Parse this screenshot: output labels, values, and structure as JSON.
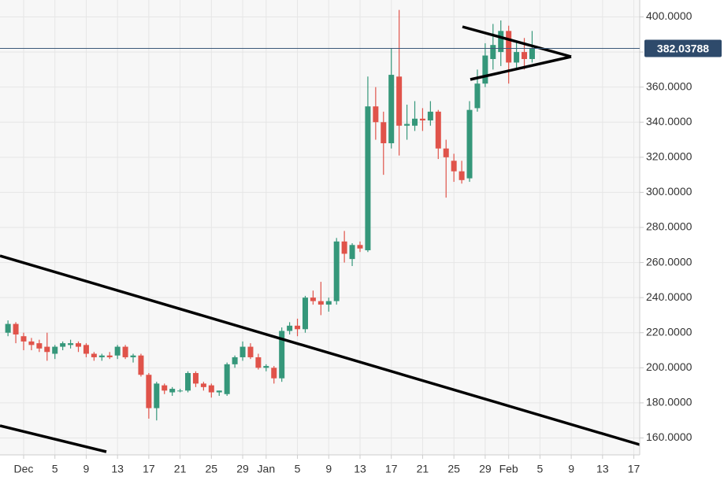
{
  "chart_data": {
    "type": "candlestick",
    "x": [
      -2,
      -1,
      0,
      1,
      2,
      3,
      4,
      5,
      6,
      7,
      8,
      9,
      10,
      11,
      12,
      13,
      14,
      15,
      16,
      17,
      18,
      19,
      20,
      21,
      22,
      23,
      24,
      25,
      26,
      27,
      28,
      29,
      30,
      31,
      32,
      33,
      34,
      35,
      36,
      37,
      38,
      39,
      40,
      41,
      42,
      43,
      44,
      45,
      46,
      47,
      48,
      49,
      50,
      51,
      52,
      53,
      54,
      55,
      56,
      57,
      58,
      59,
      60,
      61,
      62,
      63,
      64,
      65
    ],
    "open": [
      220,
      225,
      218,
      215,
      214,
      212,
      208,
      212,
      213,
      214,
      213,
      208,
      206,
      207,
      207,
      212,
      206,
      207,
      196,
      177,
      190,
      186,
      187,
      187,
      197,
      191,
      190,
      186,
      185,
      202,
      206,
      212,
      206,
      200,
      200,
      194,
      221,
      224,
      222,
      240,
      238,
      236,
      238,
      272,
      262,
      270,
      267,
      349,
      340,
      328,
      366,
      338,
      338,
      342,
      341,
      346,
      325,
      318,
      312,
      308,
      348,
      362,
      376,
      380,
      392,
      374,
      380,
      376
    ],
    "high": [
      227,
      226,
      220,
      217,
      216,
      220,
      213,
      215,
      216,
      215,
      214,
      209,
      208,
      209,
      213,
      213,
      208,
      208,
      197,
      192,
      191,
      189,
      188,
      198,
      198,
      192,
      191,
      187,
      203,
      207,
      215,
      214,
      208,
      202,
      201,
      223,
      226,
      228,
      241,
      244,
      249,
      240,
      274,
      278,
      271,
      272,
      366,
      360,
      346,
      382,
      404,
      350,
      352,
      348,
      352,
      347,
      330,
      322,
      318,
      352,
      370,
      385,
      396,
      398,
      395,
      386,
      388,
      392
    ],
    "low": [
      218,
      214,
      210,
      210,
      209,
      204,
      205,
      210,
      211,
      209,
      206,
      204,
      204,
      205,
      205,
      205,
      203,
      195,
      171,
      170,
      185,
      184,
      186,
      186,
      189,
      187,
      183,
      184,
      184,
      200,
      204,
      205,
      199,
      198,
      191,
      192,
      219,
      218,
      220,
      236,
      230,
      232,
      236,
      260,
      258,
      266,
      266,
      330,
      310,
      325,
      321,
      330,
      335,
      335,
      338,
      319,
      297,
      306,
      305,
      306,
      346,
      360,
      370,
      372,
      362,
      370,
      370,
      374
    ],
    "close": [
      225,
      219,
      215,
      213,
      211,
      209,
      212,
      214,
      214,
      212,
      208,
      206,
      207,
      206,
      212,
      206,
      207,
      196,
      177,
      191,
      187,
      188,
      187,
      197,
      191,
      189,
      186,
      187,
      202,
      206,
      212,
      206,
      200,
      201,
      194,
      221,
      224,
      222,
      240,
      238,
      236,
      238,
      272,
      265,
      270,
      268,
      349,
      340,
      328,
      367,
      338,
      339,
      342,
      341,
      346,
      325,
      320,
      312,
      307,
      347,
      362,
      378,
      384,
      392,
      374,
      380,
      376,
      382
    ],
    "up_color": "#35977a",
    "down_color": "#e0534a",
    "xlim": [
      -3.02,
      78.75
    ],
    "xticks": [
      {
        "value": 0,
        "label": "Dec"
      },
      {
        "value": 4,
        "label": "5"
      },
      {
        "value": 8,
        "label": "9"
      },
      {
        "value": 12,
        "label": "13"
      },
      {
        "value": 16,
        "label": "17"
      },
      {
        "value": 20,
        "label": "21"
      },
      {
        "value": 24,
        "label": "25"
      },
      {
        "value": 28,
        "label": "29"
      },
      {
        "value": 31,
        "label": "Jan"
      },
      {
        "value": 35,
        "label": "5"
      },
      {
        "value": 39,
        "label": "9"
      },
      {
        "value": 43,
        "label": "13"
      },
      {
        "value": 47,
        "label": "17"
      },
      {
        "value": 51,
        "label": "21"
      },
      {
        "value": 55,
        "label": "25"
      },
      {
        "value": 59,
        "label": "29"
      },
      {
        "value": 62,
        "label": "Feb"
      },
      {
        "value": 66,
        "label": "5"
      },
      {
        "value": 70,
        "label": "9"
      },
      {
        "value": 74,
        "label": "13"
      },
      {
        "value": 78,
        "label": "17"
      }
    ],
    "ylim": [
      150.35,
      409.65
    ],
    "yticks": [
      {
        "value": 160,
        "label": "160.0000"
      },
      {
        "value": 180,
        "label": "180.0000"
      },
      {
        "value": 200,
        "label": "200.0000"
      },
      {
        "value": 220,
        "label": "220.0000"
      },
      {
        "value": 240,
        "label": "240.0000"
      },
      {
        "value": 260,
        "label": "260.0000"
      },
      {
        "value": 280,
        "label": "280.0000"
      },
      {
        "value": 300,
        "label": "300.0000"
      },
      {
        "value": 320,
        "label": "320.0000"
      },
      {
        "value": 340,
        "label": "340.0000"
      },
      {
        "value": 360,
        "label": "360.0000"
      },
      {
        "value": 380,
        "label": "380.0000"
      },
      {
        "value": 400,
        "label": "400.0000"
      }
    ],
    "grid": true,
    "last_price": 382.03788
  }
}
